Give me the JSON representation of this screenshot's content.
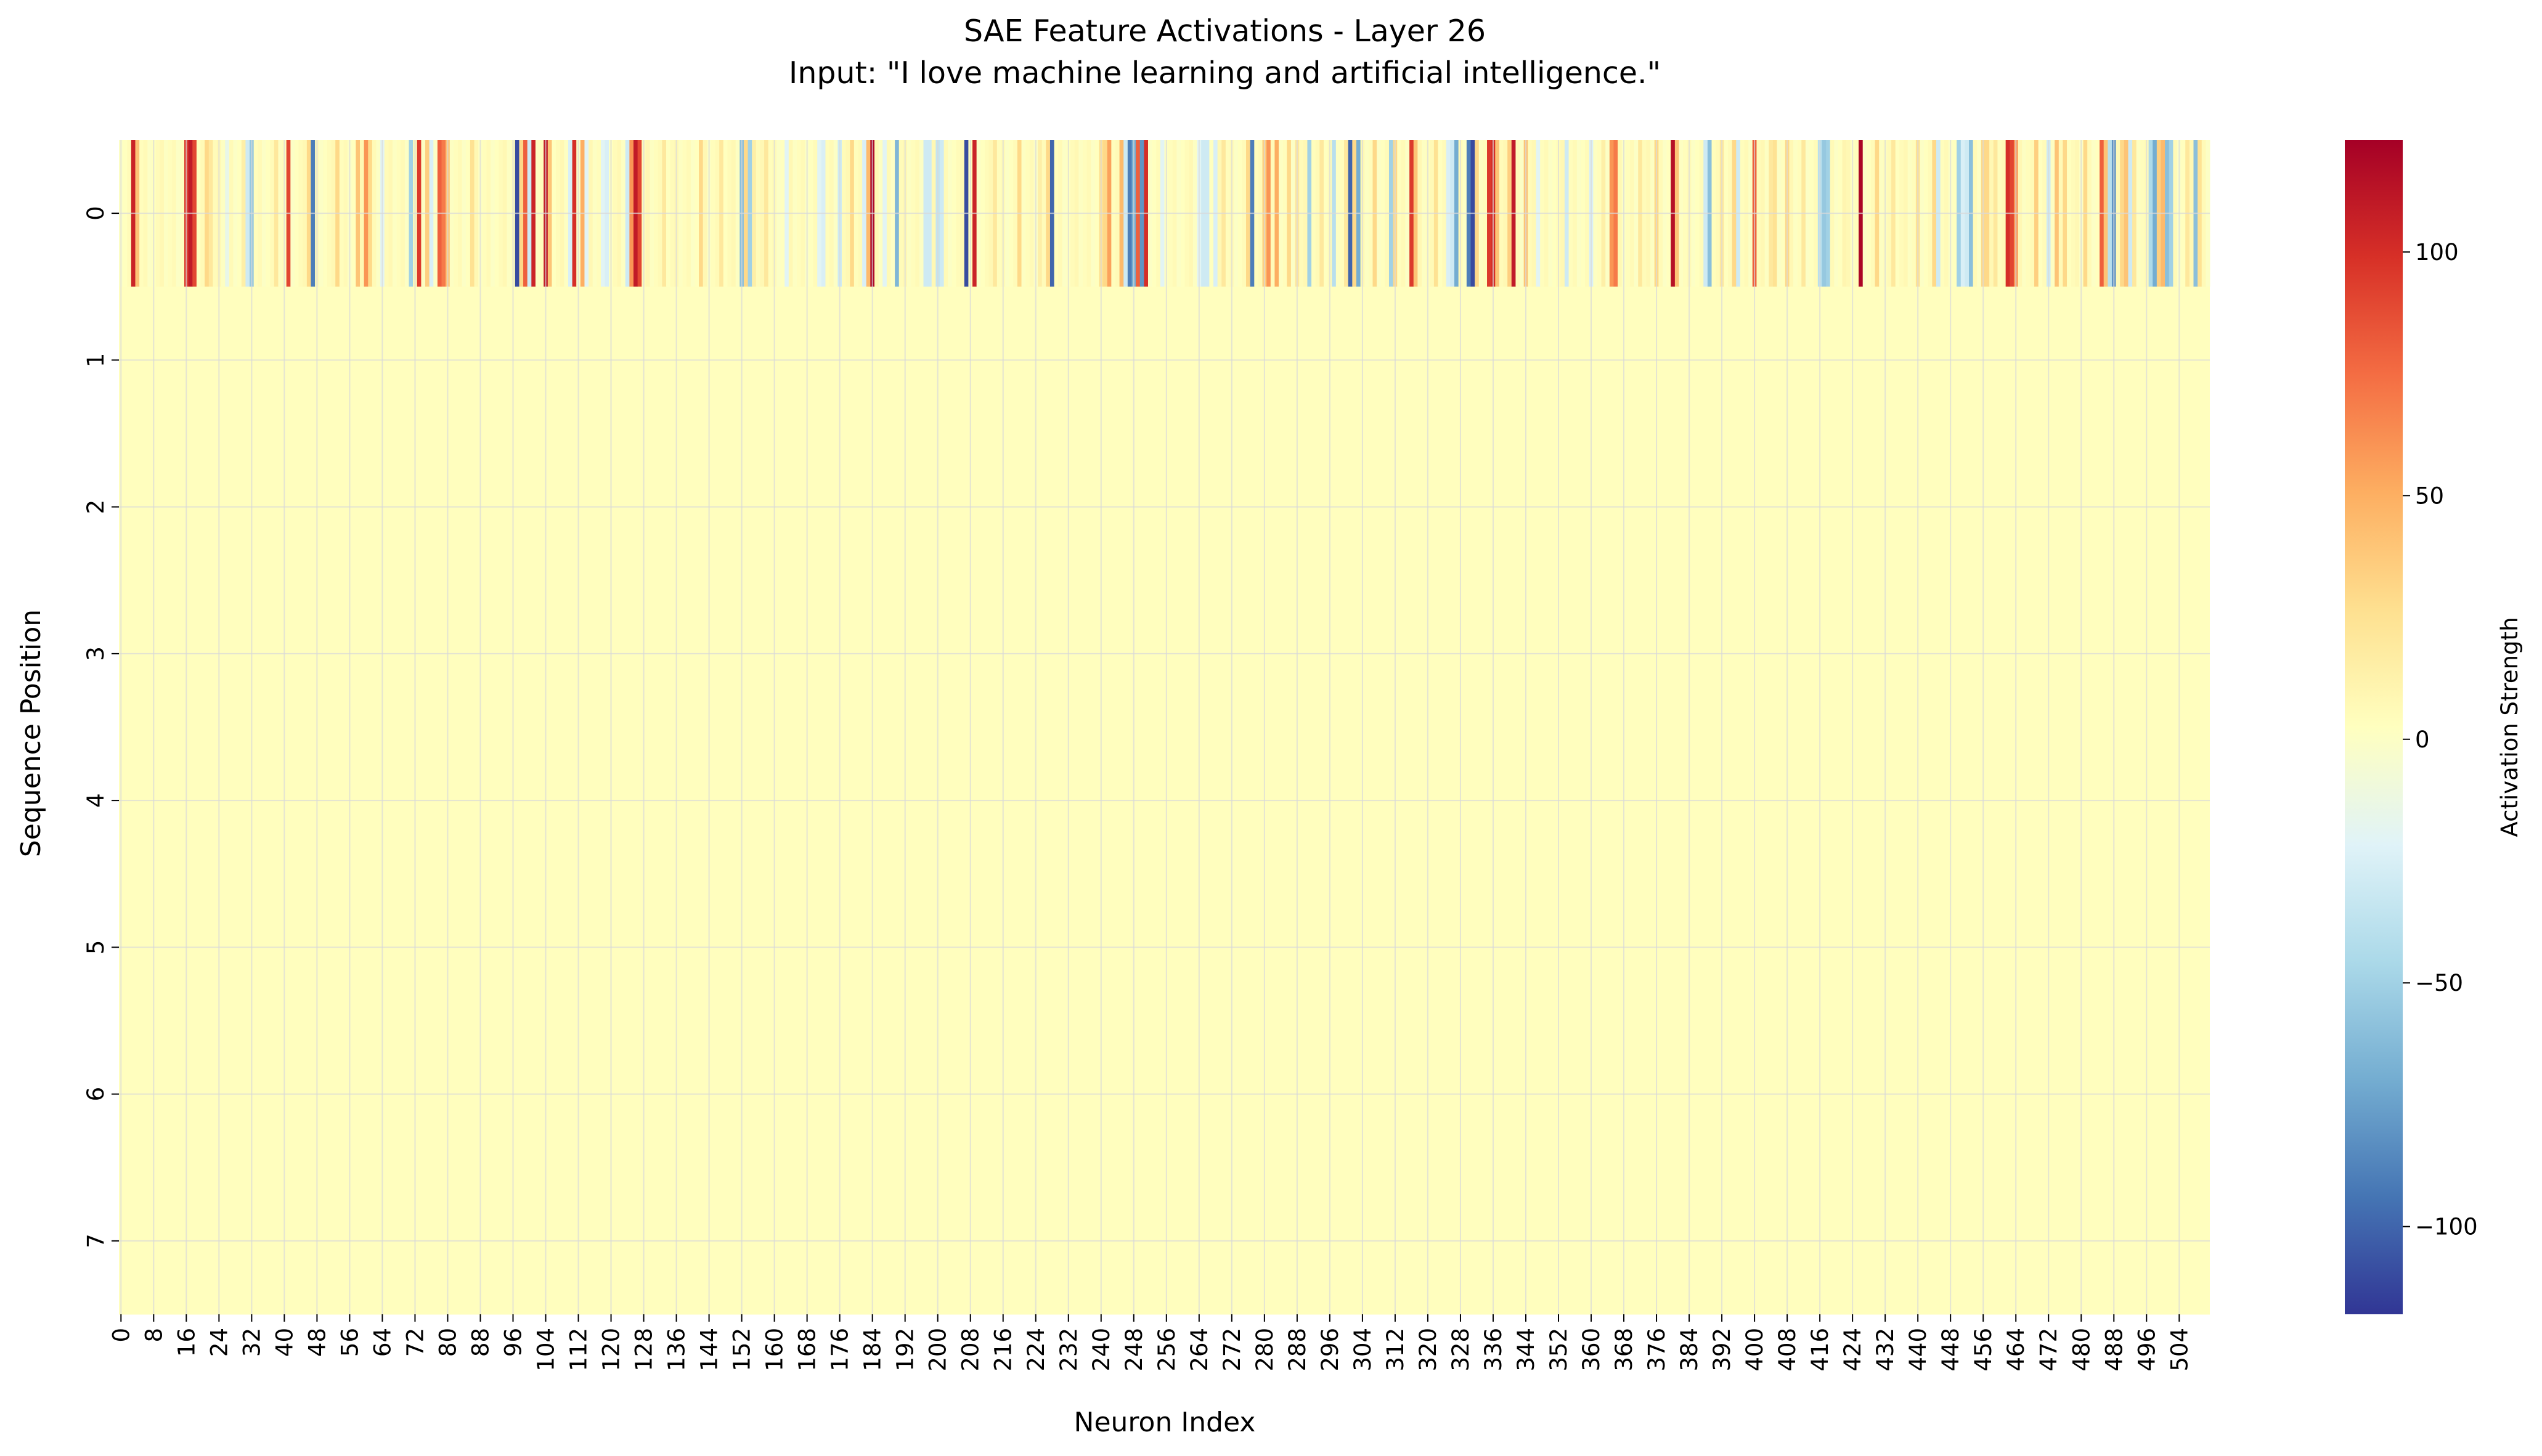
{
  "chart_data": {
    "type": "heatmap",
    "title_line1": "SAE Feature Activations - Layer 26",
    "title_line2": "Input: \"I love machine learning and artificial intelligence.\"",
    "xlabel": "Neuron Index",
    "ylabel": "Sequence Position",
    "colorbar_label": "Activation Strength",
    "colormap": "RdYlBu_r",
    "vmin": -118,
    "vmax": 123,
    "colorbar_ticks": [
      100,
      50,
      0,
      -50,
      -100
    ],
    "colorbar_tick_labels": [
      "100",
      "50",
      "0",
      "−50",
      "−100"
    ],
    "n_neurons": 512,
    "n_positions": 8,
    "y_tick_labels": [
      "0",
      "1",
      "2",
      "3",
      "4",
      "5",
      "6",
      "7"
    ],
    "x_tick_step": 8,
    "grid": true,
    "position_0_notable_values": {
      "3": 105,
      "4": 40,
      "16": 95,
      "17": 110,
      "18": 90,
      "21": 30,
      "22": 20,
      "26": -15,
      "30": 15,
      "31": -30,
      "32": -55,
      "38": 20,
      "41": 90,
      "46": 30,
      "47": -90,
      "53": 30,
      "58": 40,
      "60": 60,
      "61": 30,
      "64": -20,
      "71": -50,
      "73": 95,
      "75": 35,
      "76": -25,
      "78": 80,
      "79": 70,
      "80": 40,
      "86": 25,
      "97": -110,
      "98": 30,
      "99": 80,
      "100": -30,
      "101": 105,
      "104": 110,
      "105": 40,
      "110": -25,
      "111": 100,
      "113": 50,
      "114": -20,
      "118": -20,
      "119": -25,
      "124": -30,
      "125": 60,
      "126": 110,
      "127": 90,
      "133": 20,
      "142": 30,
      "147": 20,
      "152": -60,
      "153": 30,
      "154": -50,
      "155": 15,
      "158": 20,
      "163": -20,
      "171": -20,
      "172": -25,
      "176": -30,
      "179": 30,
      "182": -25,
      "183": 45,
      "184": 120,
      "187": -20,
      "190": -65,
      "197": -30,
      "198": -30,
      "200": -35,
      "201": -30,
      "207": -110,
      "209": 105,
      "214": 20,
      "220": 30,
      "225": 15,
      "227": 30,
      "228": -100,
      "240": 25,
      "241": 30,
      "242": 55,
      "245": 45,
      "246": -30,
      "247": -90,
      "248": -70,
      "249": 80,
      "250": -80,
      "251": 100,
      "255": -20,
      "264": -20,
      "265": -30,
      "266": -30,
      "268": -25,
      "270": 20,
      "276": 30,
      "277": -90,
      "280": 35,
      "281": 60,
      "283": 50,
      "286": 30,
      "288": 20,
      "291": -50,
      "294": 20,
      "297": -40,
      "300": 20,
      "301": -100,
      "302": 30,
      "303": -70,
      "307": 30,
      "311": -50,
      "312": 30,
      "316": 95,
      "317": 40,
      "322": 25,
      "325": -25,
      "326": -30,
      "327": -70,
      "330": -90,
      "331": -110,
      "332": 30,
      "335": 95,
      "336": 100,
      "337": 40,
      "340": 35,
      "341": 110,
      "344": 40,
      "347": -20,
      "354": -30,
      "360": -25,
      "363": 15,
      "365": 60,
      "366": 70,
      "372": 20,
      "376": 30,
      "380": 115,
      "381": 40,
      "388": -30,
      "389": -60,
      "392": 20,
      "395": 30,
      "396": -30,
      "400": 80,
      "404": 20,
      "405": 25,
      "408": 30,
      "412": 20,
      "416": -40,
      "417": -55,
      "418": -50,
      "422": 10,
      "426": 120,
      "430": 30,
      "434": 20,
      "440": 25,
      "444": 30,
      "445": -30,
      "450": -50,
      "451": -25,
      "452": -30,
      "453": -60,
      "456": 30,
      "457": 30,
      "459": 20,
      "462": 100,
      "463": 90,
      "464": 60,
      "469": 35,
      "472": -30,
      "474": 40,
      "476": 30,
      "481": 30,
      "485": 80,
      "486": 40,
      "487": -40,
      "488": -80,
      "490": 30,
      "491": 40,
      "492": -30,
      "493": 20,
      "497": -45,
      "498": -70,
      "499": 35,
      "500": 45,
      "501": -60,
      "502": -50,
      "506": 20,
      "508": -60,
      "509": 25
    }
  }
}
